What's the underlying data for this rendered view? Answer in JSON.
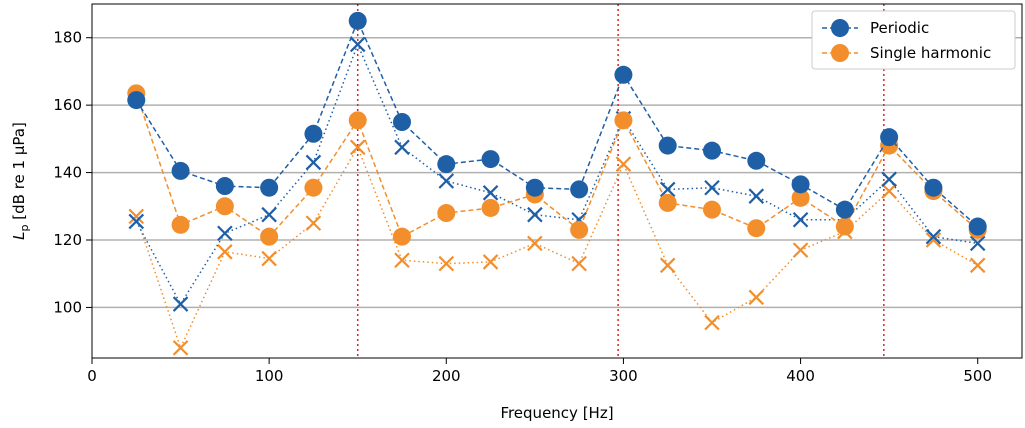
{
  "chart_data": {
    "type": "line",
    "xlabel": "Frequency [Hz]",
    "ylabel_main": "L",
    "ylabel_sub": "p",
    "ylabel_rest": " [dB re 1 μPa]",
    "xlim": [
      0,
      525
    ],
    "ylim": [
      85,
      190
    ],
    "xticks": [
      0,
      100,
      200,
      300,
      400,
      500
    ],
    "yticks": [
      100,
      120,
      140,
      160,
      180
    ],
    "grid": "horizontal",
    "legend_position": "top-right",
    "vlines": [
      150,
      297,
      447
    ],
    "x": [
      25,
      50,
      75,
      100,
      125,
      150,
      175,
      200,
      225,
      250,
      275,
      300,
      325,
      350,
      375,
      400,
      425,
      450,
      475,
      500
    ],
    "series": [
      {
        "name": "Periodic",
        "color": "#1f5fa6",
        "marker": "circle",
        "linestyle": "dashed",
        "values": [
          161.5,
          140.5,
          136,
          135.5,
          151.5,
          185,
          155,
          142.5,
          144,
          135.5,
          135,
          169,
          148,
          146.5,
          143.5,
          136.5,
          129,
          150.5,
          135.5,
          124
        ]
      },
      {
        "name": "Single harmonic",
        "color": "#f28e2b",
        "marker": "circle",
        "linestyle": "dashed",
        "values": [
          163.5,
          124.5,
          130,
          121,
          135.5,
          155.5,
          121,
          128,
          129.5,
          133.5,
          123,
          155.5,
          131,
          129,
          123.5,
          132.5,
          124,
          148,
          134.5,
          123
        ]
      },
      {
        "color": "#1f5fa6",
        "marker": "x",
        "linestyle": "dotted",
        "values": [
          125.5,
          101,
          122,
          127.5,
          143,
          178,
          147.5,
          137.5,
          134,
          127.5,
          126,
          156,
          135,
          135.5,
          133,
          126,
          126,
          138,
          121,
          119
        ]
      },
      {
        "color": "#f28e2b",
        "marker": "x",
        "linestyle": "dotted",
        "values": [
          127,
          88,
          116.5,
          114.5,
          125,
          147.5,
          114,
          113,
          113.5,
          119,
          113,
          142.5,
          112.5,
          95.5,
          103,
          117,
          122.5,
          134.5,
          120,
          112.5
        ]
      }
    ]
  }
}
